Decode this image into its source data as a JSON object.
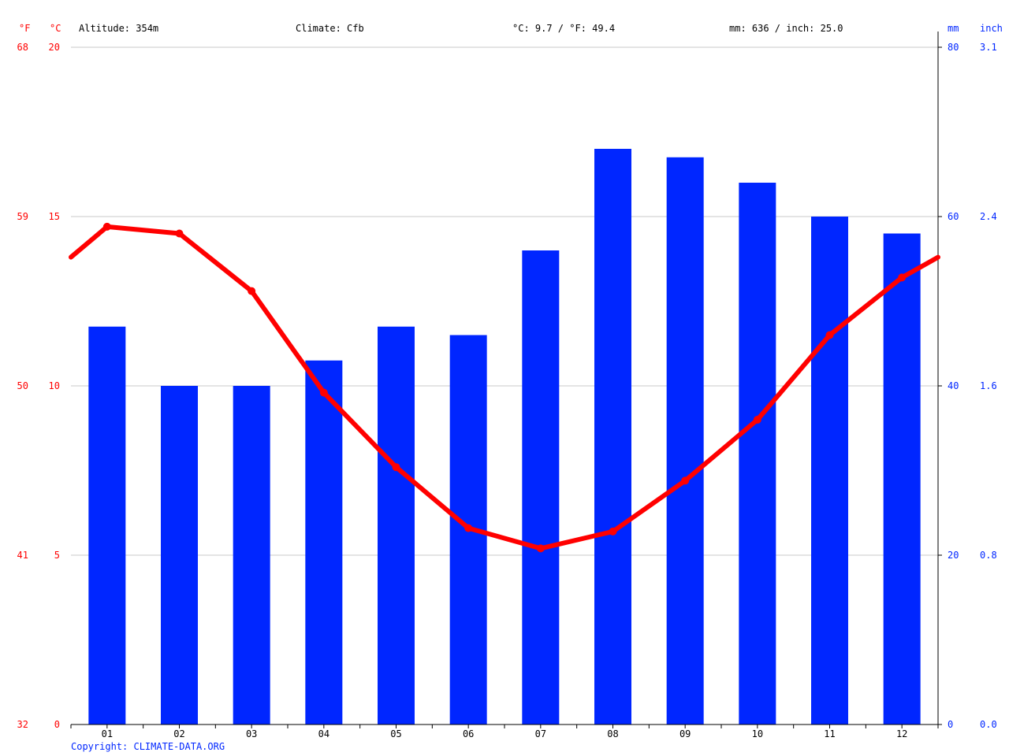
{
  "header": {
    "unit_f": "°F",
    "unit_c": "°C",
    "altitude": "Altitude: 354m",
    "climate": "Climate: Cfb",
    "temperature": "°C: 9.7 / °F: 49.4",
    "precipitation": "mm: 636 / inch: 25.0",
    "unit_mm": "mm",
    "unit_inch": "inch"
  },
  "copyright": "Copyright: CLIMATE-DATA.ORG",
  "colors": {
    "precipitation_bars": "#0026ff",
    "temperature_line": "#ff0000",
    "gridline": "#c8c8c8",
    "axis": "#000000"
  },
  "chart_data": {
    "type": "bar",
    "categories": [
      "01",
      "02",
      "03",
      "04",
      "05",
      "06",
      "07",
      "08",
      "09",
      "10",
      "11",
      "12"
    ],
    "series": [
      {
        "type": "bar",
        "axis": "right-mm",
        "values": [
          47,
          40,
          40,
          43,
          47,
          46,
          56,
          68,
          67,
          64,
          60,
          58
        ]
      },
      {
        "type": "line",
        "axis": "left-celsius",
        "values": [
          14.7,
          14.5,
          12.8,
          9.8,
          7.6,
          5.8,
          5.2,
          5.7,
          7.2,
          9.0,
          11.5,
          13.2
        ],
        "line_start_value": 13.8,
        "line_end_value": 13.8
      }
    ],
    "axes": {
      "left_celsius": {
        "ylim": [
          0,
          20
        ],
        "ticks": [
          "0",
          "5",
          "10",
          "15",
          "20"
        ]
      },
      "left_fahrenheit": {
        "ticks": [
          "32",
          "41",
          "50",
          "59",
          "68"
        ]
      },
      "right_mm": {
        "ylim": [
          0,
          80
        ],
        "ticks": [
          "0",
          "20",
          "40",
          "60",
          "80"
        ]
      },
      "right_inch": {
        "ticks": [
          "0.0",
          "0.8",
          "1.6",
          "2.4",
          "3.1"
        ]
      }
    },
    "grid": true,
    "legend": "none"
  }
}
